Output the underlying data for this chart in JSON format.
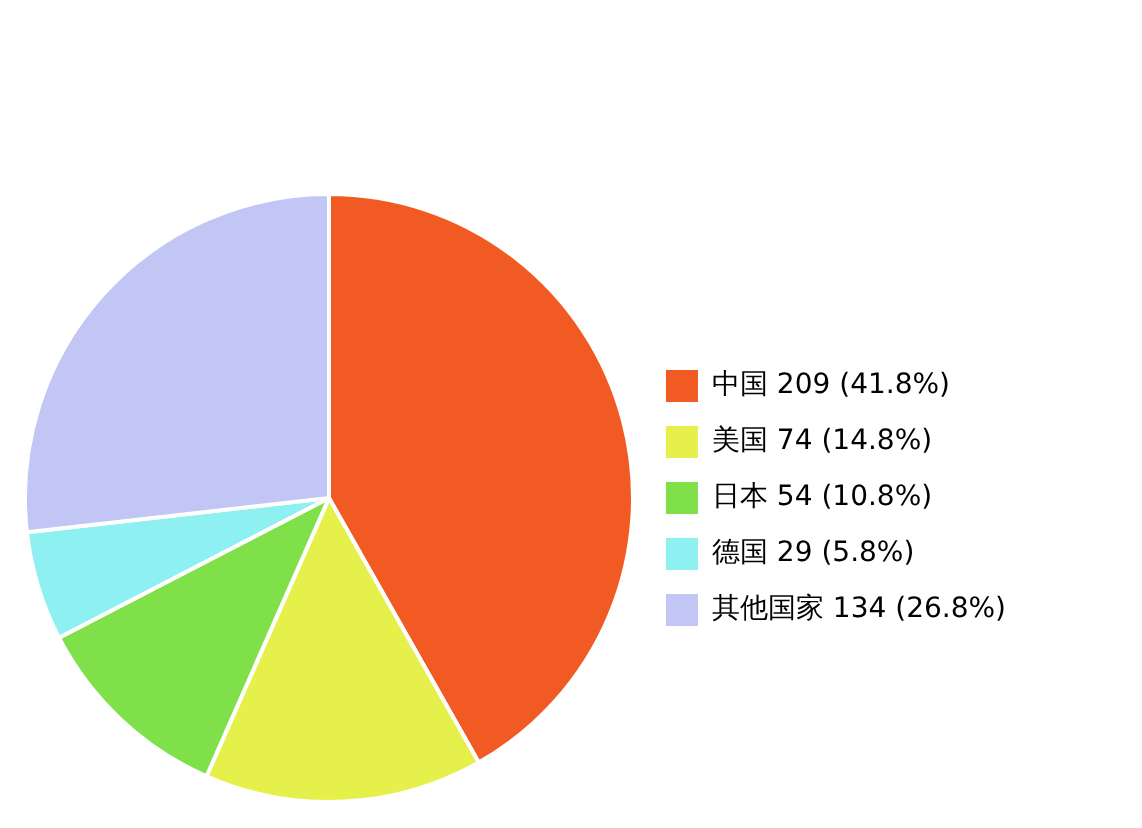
{
  "chart_data": {
    "type": "pie",
    "categories": [
      "中国",
      "美国",
      "日本",
      "德国",
      "其他国家"
    ],
    "values": [
      209,
      74,
      54,
      29,
      134
    ],
    "value_labels": [
      "209 (41.8%)",
      "74 (14.8%)",
      "54 (10.8%)",
      "29 (5.8%)",
      "134 (26.8%)"
    ],
    "colors": [
      "#f15a22",
      "#e6f04a",
      "#7fe04a",
      "#8ef0f0",
      "#c2c6f5"
    ],
    "legend": "right"
  }
}
